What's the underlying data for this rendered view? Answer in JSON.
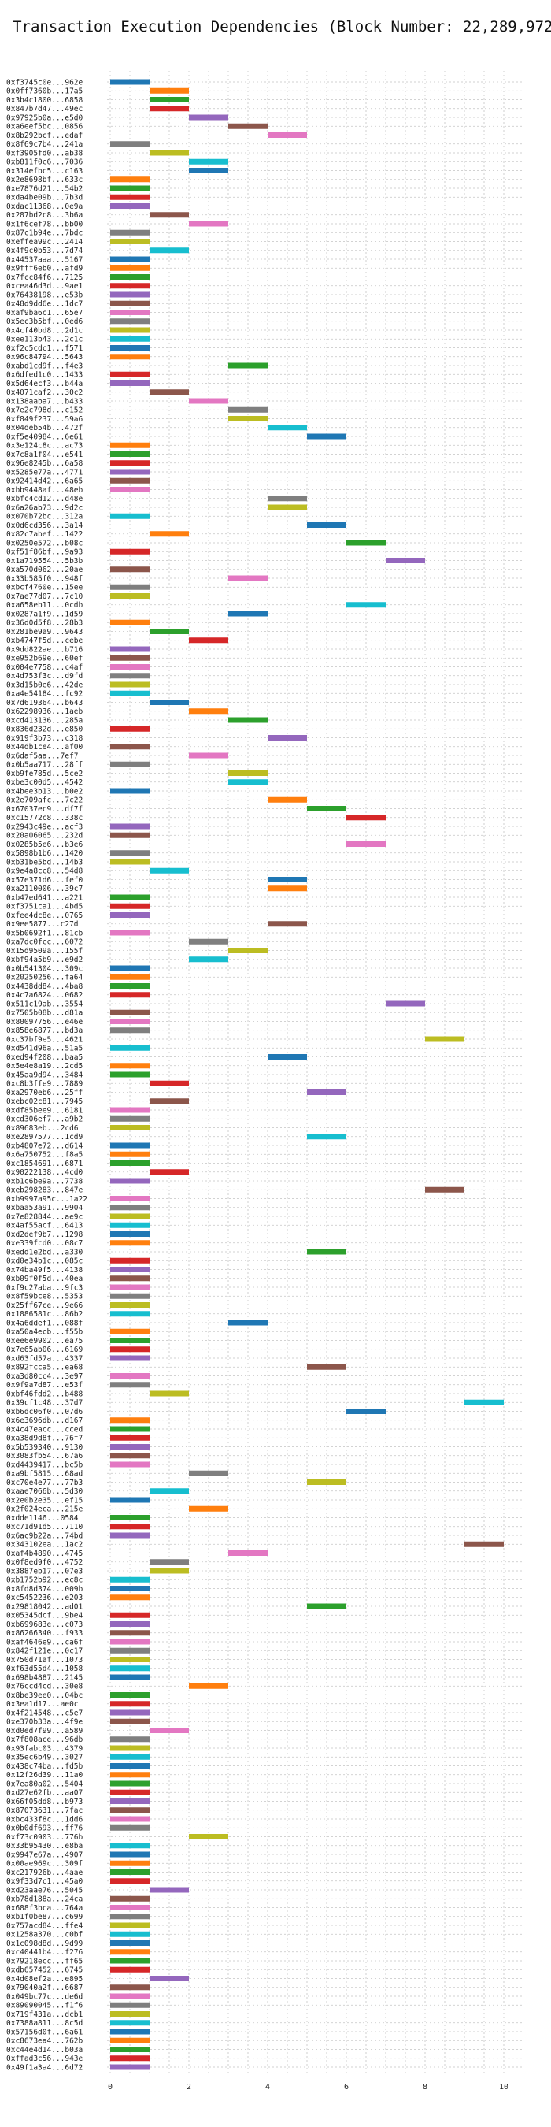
{
  "chart_data": {
    "type": "gantt",
    "title": "Transaction Execution Dependencies (Block Number: 22,289,972)",
    "xlim": [
      0,
      10.5
    ],
    "xticks": [
      0,
      2,
      4,
      6,
      8,
      10
    ],
    "grid": true,
    "palette": [
      "#1f77b4",
      "#ff7f0e",
      "#2ca02c",
      "#d62728",
      "#9467bd",
      "#8c564b",
      "#e377c2",
      "#7f7f7f",
      "#bcbd22",
      "#17becf"
    ],
    "bar_span": 1,
    "rows": [
      {
        "label": "0xf3745c0e...962e",
        "start": 0
      },
      {
        "label": "0x0ff7360b...17a5",
        "start": 1
      },
      {
        "label": "0x3b4c1800...6858",
        "start": 1
      },
      {
        "label": "0x847b7d47...49ec",
        "start": 1
      },
      {
        "label": "0x97925b0a...e5d0",
        "start": 2
      },
      {
        "label": "0xa6eef5bc...0856",
        "start": 3
      },
      {
        "label": "0x8b292bcf...edaf",
        "start": 4
      },
      {
        "label": "0x8f69c7b4...241a",
        "start": 0
      },
      {
        "label": "0xf3905fd0...ab38",
        "start": 1
      },
      {
        "label": "0xb811f0c6...7036",
        "start": 2
      },
      {
        "label": "0x314efbc5...c163",
        "start": 2
      },
      {
        "label": "0x2e8698bf...633c",
        "start": 0
      },
      {
        "label": "0xe7876d21...54b2",
        "start": 0
      },
      {
        "label": "0xda4be09b...7b3d",
        "start": 0
      },
      {
        "label": "0xdac11368...0e9a",
        "start": 0
      },
      {
        "label": "0x287bd2c8...3b6a",
        "start": 1
      },
      {
        "label": "0x1f6cef78...bb00",
        "start": 2
      },
      {
        "label": "0x87c1b94e...7bdc",
        "start": 0
      },
      {
        "label": "0xeffea99c...2414",
        "start": 0
      },
      {
        "label": "0x4f9c0b53...7d74",
        "start": 1
      },
      {
        "label": "0x44537aaa...5167",
        "start": 0
      },
      {
        "label": "0x9fff6eb0...afd9",
        "start": 0
      },
      {
        "label": "0x7fcc84f6...7125",
        "start": 0
      },
      {
        "label": "0xcea46d3d...9ae1",
        "start": 0
      },
      {
        "label": "0x76438198...e53b",
        "start": 0
      },
      {
        "label": "0x48d9dd6e...1dc7",
        "start": 0
      },
      {
        "label": "0xaf9ba6c1...65e7",
        "start": 0
      },
      {
        "label": "0x5ec3b5bf...0ed6",
        "start": 0
      },
      {
        "label": "0x4cf40bd8...2d1c",
        "start": 0
      },
      {
        "label": "0xee113b43...2c1c",
        "start": 0
      },
      {
        "label": "0xf2c5cdc1...f571",
        "start": 0
      },
      {
        "label": "0x96c84794...5643",
        "start": 0
      },
      {
        "label": "0xabd1cd9f...f4e3",
        "start": 3
      },
      {
        "label": "0x6dfed1c0...1433",
        "start": 0
      },
      {
        "label": "0x5d64ecf3...b44a",
        "start": 0
      },
      {
        "label": "0x4071caf2...30c2",
        "start": 1
      },
      {
        "label": "0x138aaba7...b433",
        "start": 2
      },
      {
        "label": "0x7e2c798d...c152",
        "start": 3
      },
      {
        "label": "0xf849f237...59a6",
        "start": 3
      },
      {
        "label": "0x04deb54b...472f",
        "start": 4
      },
      {
        "label": "0xf5e40984...6e61",
        "start": 5
      },
      {
        "label": "0x3e124c8c...ac73",
        "start": 0
      },
      {
        "label": "0x7c8a1f04...e541",
        "start": 0
      },
      {
        "label": "0x96e8245b...6a58",
        "start": 0
      },
      {
        "label": "0x5285e77a...4771",
        "start": 0
      },
      {
        "label": "0x92414d42...6a65",
        "start": 0
      },
      {
        "label": "0xbb9448af...48eb",
        "start": 0
      },
      {
        "label": "0xbfc4cd12...d48e",
        "start": 4
      },
      {
        "label": "0x6a26ab73...9d2c",
        "start": 4
      },
      {
        "label": "0x070b72bc...312a",
        "start": 0
      },
      {
        "label": "0x0d6cd356...3a14",
        "start": 5
      },
      {
        "label": "0x82c7abef...1422",
        "start": 1
      },
      {
        "label": "0x0250e572...b08c",
        "start": 6
      },
      {
        "label": "0xf51f86bf...9a93",
        "start": 0
      },
      {
        "label": "0x1a719554...5b3b",
        "start": 7
      },
      {
        "label": "0xa570d062...20ae",
        "start": 0
      },
      {
        "label": "0x33b585f0...948f",
        "start": 3
      },
      {
        "label": "0xbcf4760e...15ee",
        "start": 0
      },
      {
        "label": "0x7ae77d07...7c10",
        "start": 0
      },
      {
        "label": "0xa658eb11...0cdb",
        "start": 6
      },
      {
        "label": "0x0287a1f9...1d59",
        "start": 3
      },
      {
        "label": "0x36d0d5f8...28b3",
        "start": 0
      },
      {
        "label": "0x281be9a9...9643",
        "start": 1
      },
      {
        "label": "0xb4747f5d...cebe",
        "start": 2
      },
      {
        "label": "0x9dd822ae...b716",
        "start": 0
      },
      {
        "label": "0xe952b69e...60ef",
        "start": 0
      },
      {
        "label": "0x004e7758...c4af",
        "start": 0
      },
      {
        "label": "0x4d753f3c...d9fd",
        "start": 0
      },
      {
        "label": "0x3d15b0e6...42de",
        "start": 0
      },
      {
        "label": "0xa4e54184...fc92",
        "start": 0
      },
      {
        "label": "0x7d619364...b643",
        "start": 1
      },
      {
        "label": "0x62298936...1aeb",
        "start": 2
      },
      {
        "label": "0xcd413136...285a",
        "start": 3
      },
      {
        "label": "0x836d232d...e850",
        "start": 0
      },
      {
        "label": "0x919f3b73...c318",
        "start": 4
      },
      {
        "label": "0x44db1ce4...af00",
        "start": 0
      },
      {
        "label": "0x6daf5aa...7ef7",
        "start": 2
      },
      {
        "label": "0x0b5aa717...28ff",
        "start": 0
      },
      {
        "label": "0xb9fe785d...5ce2",
        "start": 3
      },
      {
        "label": "0xbe3c00d5...4542",
        "start": 3
      },
      {
        "label": "0x4bee3b13...b0e2",
        "start": 0
      },
      {
        "label": "0x2e709afc...7c22",
        "start": 4
      },
      {
        "label": "0x67037ec9...df7f",
        "start": 5
      },
      {
        "label": "0xc15772c8...338c",
        "start": 6
      },
      {
        "label": "0x2943c49e...acf3",
        "start": 0
      },
      {
        "label": "0x20a06065...232d",
        "start": 0
      },
      {
        "label": "0x0285b5e6...b3e6",
        "start": 6
      },
      {
        "label": "0x5898b1b6...1420",
        "start": 0
      },
      {
        "label": "0xb31be5bd...14b3",
        "start": 0
      },
      {
        "label": "0x9e4a8cc8...54d8",
        "start": 1
      },
      {
        "label": "0x57e371d6...fef0",
        "start": 4
      },
      {
        "label": "0xa2110006...39c7",
        "start": 4
      },
      {
        "label": "0xb47ed641...a221",
        "start": 0
      },
      {
        "label": "0xf3751ca1...4bd5",
        "start": 0
      },
      {
        "label": "0xfee4dc8e...0765",
        "start": 0
      },
      {
        "label": "0x9ee5877...c27d",
        "start": 4
      },
      {
        "label": "0x5b0692f1...81cb",
        "start": 0
      },
      {
        "label": "0xa7dc0fcc...6072",
        "start": 2
      },
      {
        "label": "0x15d9509a...155f",
        "start": 3
      },
      {
        "label": "0xbf94a5b9...e9d2",
        "start": 2
      },
      {
        "label": "0x0b541304...309c",
        "start": 0
      },
      {
        "label": "0x20250256...fa64",
        "start": 0
      },
      {
        "label": "0x4438dd84...4ba8",
        "start": 0
      },
      {
        "label": "0x4c7a6824...0682",
        "start": 0
      },
      {
        "label": "0x511c19ab...3554",
        "start": 7
      },
      {
        "label": "0x7505b08b...d81a",
        "start": 0
      },
      {
        "label": "0x80097756...e46e",
        "start": 0
      },
      {
        "label": "0x858e6877...bd3a",
        "start": 0
      },
      {
        "label": "0xc37bf9e5...4621",
        "start": 8
      },
      {
        "label": "0xd541d96a...51a5",
        "start": 0
      },
      {
        "label": "0xed94f208...baa5",
        "start": 4
      },
      {
        "label": "0x5e4e8a19...2cd5",
        "start": 0
      },
      {
        "label": "0x45aa9d94...3484",
        "start": 0
      },
      {
        "label": "0xc8b3ffe9...7889",
        "start": 1
      },
      {
        "label": "0xa2970eb6...25ff",
        "start": 5
      },
      {
        "label": "0xebc02c81...7945",
        "start": 1
      },
      {
        "label": "0xdf85bee9...6181",
        "start": 0
      },
      {
        "label": "0xcd306ef7...a9b2",
        "start": 0
      },
      {
        "label": "0x89683eb...2cd6",
        "start": 0
      },
      {
        "label": "0xe2897577...1cd9",
        "start": 5
      },
      {
        "label": "0xb4807e72...d614",
        "start": 0
      },
      {
        "label": "0x6a750752...f8a5",
        "start": 0
      },
      {
        "label": "0xc1854691...6871",
        "start": 0
      },
      {
        "label": "0x90222138...4cd0",
        "start": 1
      },
      {
        "label": "0xb1c6be9a...7738",
        "start": 0
      },
      {
        "label": "0xeb298283...847e",
        "start": 8
      },
      {
        "label": "0xb9997a95c...1a22",
        "start": 0
      },
      {
        "label": "0xbaa53a91...9904",
        "start": 0
      },
      {
        "label": "0x7e828844...ae9c",
        "start": 0
      },
      {
        "label": "0x4af55acf...6413",
        "start": 0
      },
      {
        "label": "0xd2def9b7...1298",
        "start": 0
      },
      {
        "label": "0xe339fcd0...08c7",
        "start": 0
      },
      {
        "label": "0xedd1e2bd...a330",
        "start": 5
      },
      {
        "label": "0xd0e34b1c...085c",
        "start": 0
      },
      {
        "label": "0x74ba49f5...4138",
        "start": 0
      },
      {
        "label": "0xb09f0f5d...40ea",
        "start": 0
      },
      {
        "label": "0xf9c27aba...9fc3",
        "start": 0
      },
      {
        "label": "0x8f59bce8...5353",
        "start": 0
      },
      {
        "label": "0x25ff67ce...9e66",
        "start": 0
      },
      {
        "label": "0x1886581c...86b2",
        "start": 0
      },
      {
        "label": "0x4a6ddef1...088f",
        "start": 3
      },
      {
        "label": "0xa50a4ecb...f55b",
        "start": 0
      },
      {
        "label": "0xee6e9902...ea75",
        "start": 0
      },
      {
        "label": "0x7e65ab06...6169",
        "start": 0
      },
      {
        "label": "0xd63fd57a...4337",
        "start": 0
      },
      {
        "label": "0x892fcca5...ea68",
        "start": 5
      },
      {
        "label": "0xa3d80cc4...3e97",
        "start": 0
      },
      {
        "label": "0x9f9a7d87...e53f",
        "start": 0
      },
      {
        "label": "0xbf46fdd2...b488",
        "start": 1
      },
      {
        "label": "0x39cf1c48...37d7",
        "start": 9
      },
      {
        "label": "0xb6dc06f0...07d6",
        "start": 6
      },
      {
        "label": "0x6e3696db...d167",
        "start": 0
      },
      {
        "label": "0x4c47eacc...cced",
        "start": 0
      },
      {
        "label": "0xa38d9d8f...76f7",
        "start": 0
      },
      {
        "label": "0x5b539340...9130",
        "start": 0
      },
      {
        "label": "0x3083fb54...67a6",
        "start": 0
      },
      {
        "label": "0xd4439417...bc5b",
        "start": 0
      },
      {
        "label": "0xa9bf5815...68ad",
        "start": 2
      },
      {
        "label": "0xc70e4e77...77b3",
        "start": 5
      },
      {
        "label": "0xaae7066b...5d30",
        "start": 1
      },
      {
        "label": "0x2e0b2e35...ef15",
        "start": 0
      },
      {
        "label": "0x2f024eca...215e",
        "start": 2
      },
      {
        "label": "0xdde1146...0584",
        "start": 0
      },
      {
        "label": "0xc71d91d5...7110",
        "start": 0
      },
      {
        "label": "0x6ac9b22a...74bd",
        "start": 0
      },
      {
        "label": "0x343102ea...1ac2",
        "start": 9
      },
      {
        "label": "0xaf4b4890...4745",
        "start": 3
      },
      {
        "label": "0x0f8ed9f0...4752",
        "start": 1
      },
      {
        "label": "0x3887eb17...07e3",
        "start": 1
      },
      {
        "label": "0xb1752b92...ec8c",
        "start": 0
      },
      {
        "label": "0x8fd8d374...009b",
        "start": 0
      },
      {
        "label": "0xc5452236...e203",
        "start": 0
      },
      {
        "label": "0x29818042...ad01",
        "start": 5
      },
      {
        "label": "0x05345dcf...9be4",
        "start": 0
      },
      {
        "label": "0xb699683e...c073",
        "start": 0
      },
      {
        "label": "0x86266340...f933",
        "start": 0
      },
      {
        "label": "0xaf4646e9...ca6f",
        "start": 0
      },
      {
        "label": "0x842f121e...0c17",
        "start": 0
      },
      {
        "label": "0x750d71af...1073",
        "start": 0
      },
      {
        "label": "0xf63d55d4...1058",
        "start": 0
      },
      {
        "label": "0x698b4887...2145",
        "start": 0
      },
      {
        "label": "0x76ccd4cd...30e8",
        "start": 2
      },
      {
        "label": "0x8be39ee0...04bc",
        "start": 0
      },
      {
        "label": "0x3ea1d17...ae0c",
        "start": 0
      },
      {
        "label": "0x4f214548...c5e7",
        "start": 0
      },
      {
        "label": "0xe370b33a...4f9e",
        "start": 0
      },
      {
        "label": "0xd0ed7f99...a589",
        "start": 1
      },
      {
        "label": "0x7f808ace...96db",
        "start": 0
      },
      {
        "label": "0x93fabc03...4379",
        "start": 0
      },
      {
        "label": "0x35ec6b49...3027",
        "start": 0
      },
      {
        "label": "0x438c74ba...fd5b",
        "start": 0
      },
      {
        "label": "0x12f26d39...11a0",
        "start": 0
      },
      {
        "label": "0x7ea80a02...5404",
        "start": 0
      },
      {
        "label": "0xd27e62fb...aa07",
        "start": 0
      },
      {
        "label": "0x66f05dd8...b973",
        "start": 0
      },
      {
        "label": "0x87073631...7fac",
        "start": 0
      },
      {
        "label": "0xbc433f8c...1dd6",
        "start": 0
      },
      {
        "label": "0x0b0df693...ff76",
        "start": 0
      },
      {
        "label": "0xf73c0903...776b",
        "start": 2
      },
      {
        "label": "0x33b95430...e8ba",
        "start": 0
      },
      {
        "label": "0x9947e67a...4907",
        "start": 0
      },
      {
        "label": "0x00ae969c...309f",
        "start": 0
      },
      {
        "label": "0xc217926b...4aae",
        "start": 0
      },
      {
        "label": "0x9f33d7c1...45a0",
        "start": 0
      },
      {
        "label": "0xd23aae76...5045",
        "start": 1
      },
      {
        "label": "0xb78d188a...24ca",
        "start": 0
      },
      {
        "label": "0x688f3bca...764a",
        "start": 0
      },
      {
        "label": "0xb1f0be87...c699",
        "start": 0
      },
      {
        "label": "0x757acd84...ffe4",
        "start": 0
      },
      {
        "label": "0x1258a370...c0bf",
        "start": 0
      },
      {
        "label": "0x1c098d8d...9d99",
        "start": 0
      },
      {
        "label": "0xc40441b4...f276",
        "start": 0
      },
      {
        "label": "0x79218ecc...ff65",
        "start": 0
      },
      {
        "label": "0xdb657452...6745",
        "start": 0
      },
      {
        "label": "0x4d08ef2a...e895",
        "start": 1
      },
      {
        "label": "0x79040a2f...6687",
        "start": 0
      },
      {
        "label": "0x049bc77c...de6d",
        "start": 0
      },
      {
        "label": "0x89090045...f1f6",
        "start": 0
      },
      {
        "label": "0x719f431a...dcb1",
        "start": 0
      },
      {
        "label": "0x7388a811...8c5d",
        "start": 0
      },
      {
        "label": "0x57156d0f...6a61",
        "start": 0
      },
      {
        "label": "0xc8673ea4...762b",
        "start": 0
      },
      {
        "label": "0xc44e4d14...b03a",
        "start": 0
      },
      {
        "label": "0xffad3c56...943e",
        "start": 0
      },
      {
        "label": "0x49f1a3a4...6d72",
        "start": 0
      }
    ]
  }
}
